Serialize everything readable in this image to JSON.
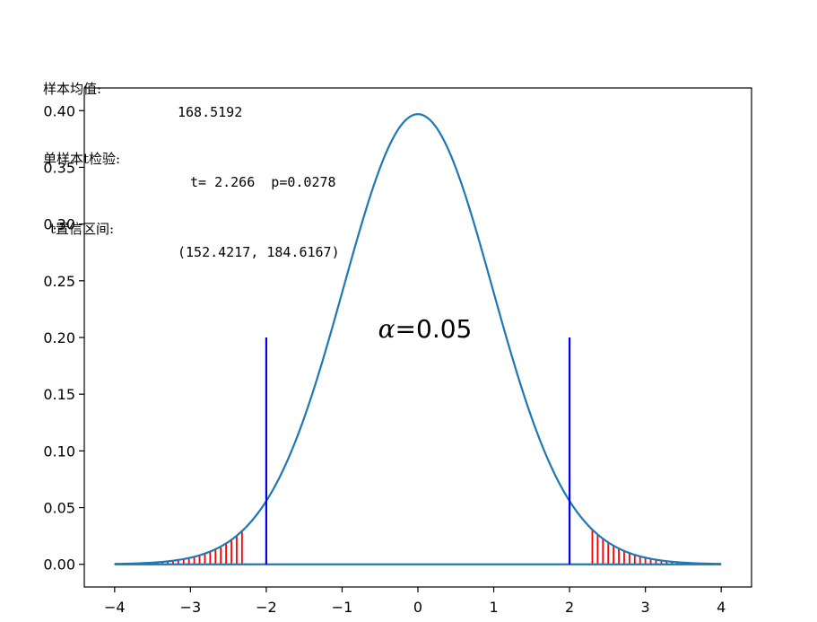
{
  "stats": [
    {
      "label": "样本均值:",
      "value": "168.5192"
    },
    {
      "label": "单样本t检验:",
      "value": "t= 2.266  p=0.0278"
    },
    {
      "label": "t置信区间:",
      "value": "(152.4217, 184.6167)"
    }
  ],
  "chart_data": {
    "type": "line",
    "title": "",
    "xlabel": "",
    "ylabel": "",
    "xlim": [
      -4.4,
      4.4
    ],
    "ylim": [
      -0.02,
      0.42
    ],
    "x_ticks": [
      "−4",
      "−3",
      "−2",
      "−1",
      "0",
      "1",
      "2",
      "3",
      "4"
    ],
    "x_tick_values": [
      -4,
      -3,
      -2,
      -1,
      0,
      1,
      2,
      3,
      4
    ],
    "y_ticks": [
      "0.00",
      "0.05",
      "0.10",
      "0.15",
      "0.20",
      "0.25",
      "0.30",
      "0.35",
      "0.40"
    ],
    "y_tick_values": [
      0,
      0.05,
      0.1,
      0.15,
      0.2,
      0.25,
      0.3,
      0.35,
      0.4
    ],
    "series": [
      {
        "kind": "density-curve",
        "distribution": "t",
        "df": 49,
        "x_range": [
          -4,
          4
        ],
        "color": "#1f77b4"
      },
      {
        "kind": "baseline",
        "y": 0,
        "x_range": [
          -4,
          4
        ],
        "color": "#1f77b4"
      }
    ],
    "critical_lines": {
      "x": [
        -2.0,
        2.0
      ],
      "y_range": [
        0,
        0.2
      ],
      "color": "#0000ff"
    },
    "rejection_hatching": {
      "left_range": [
        -4,
        -2.3
      ],
      "right_range": [
        2.3,
        4
      ],
      "spacing": 0.07,
      "color": "#ff0000"
    },
    "annotation": {
      "symbol": "α",
      "text": "=0.05",
      "x": 0,
      "y": 0.2
    },
    "grid": false,
    "legend": "none"
  }
}
